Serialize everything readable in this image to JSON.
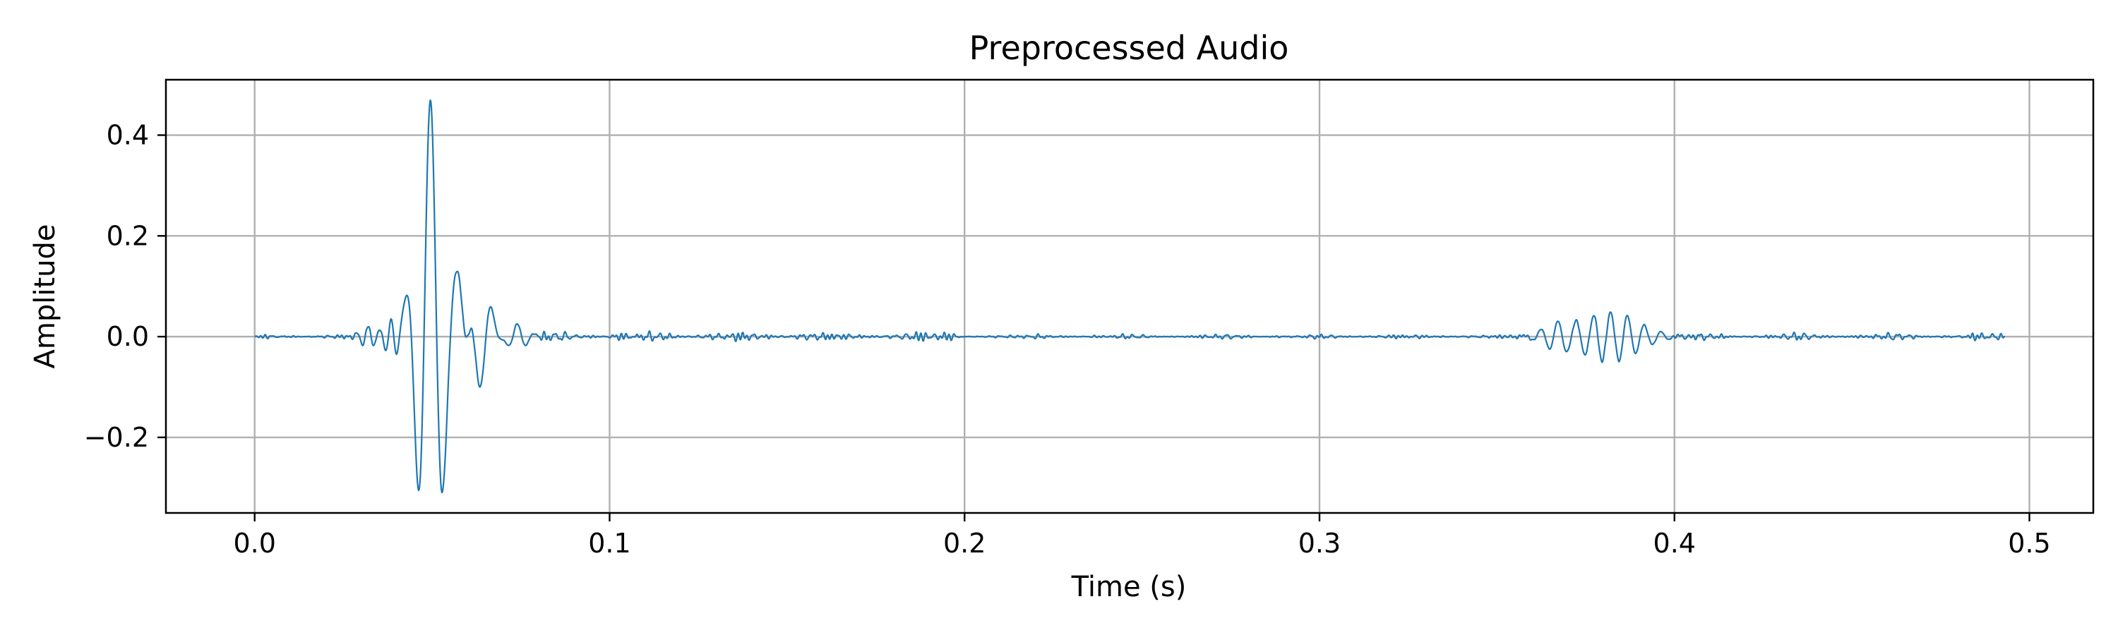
{
  "chart_data": {
    "type": "line",
    "title": "Preprocessed Audio",
    "xlabel": "Time (s)",
    "ylabel": "Amplitude",
    "xlim": [
      -0.025,
      0.518
    ],
    "ylim": [
      -0.35,
      0.51
    ],
    "xticks": [
      0.0,
      0.1,
      0.2,
      0.3,
      0.4,
      0.5
    ],
    "xtick_labels": [
      "0.0",
      "0.1",
      "0.2",
      "0.3",
      "0.4",
      "0.5"
    ],
    "yticks": [
      -0.2,
      0.0,
      0.2,
      0.4
    ],
    "ytick_labels": [
      "−0.2",
      "0.0",
      "0.2",
      "0.4"
    ],
    "grid": true,
    "legend": "none",
    "series": [
      {
        "color": "#1f77b4",
        "x_range": [
          0.0,
          0.493
        ],
        "bursts": [
          {
            "center": 0.0495,
            "amplitude": 0.47,
            "width": 0.0052,
            "freq": 140
          },
          {
            "center": 0.0635,
            "amplitude": -0.105,
            "width": 0.0042,
            "freq": 150
          },
          {
            "center": 0.0575,
            "amplitude": 0.1,
            "width": 0.0035,
            "freq": 150
          },
          {
            "center": 0.0385,
            "amplitude": 0.04,
            "width": 0.0025,
            "freq": 300
          },
          {
            "center": 0.032,
            "amplitude": 0.02,
            "width": 0.003,
            "freq": 300
          },
          {
            "center": 0.074,
            "amplitude": 0.025,
            "width": 0.004,
            "freq": 200
          },
          {
            "center": 0.382,
            "amplitude": 0.05,
            "width": 0.011,
            "freq": 210
          },
          {
            "center": 0.367,
            "amplitude": 0.025,
            "width": 0.006,
            "freq": 210
          }
        ],
        "noise_segments": [
          {
            "from": 0.0,
            "to": 0.03,
            "amplitude": 0.004
          },
          {
            "from": 0.08,
            "to": 0.2,
            "amplitude": 0.009
          },
          {
            "from": 0.2,
            "to": 0.36,
            "amplitude": 0.004
          },
          {
            "from": 0.4,
            "to": 0.493,
            "amplitude": 0.006
          }
        ]
      }
    ]
  }
}
